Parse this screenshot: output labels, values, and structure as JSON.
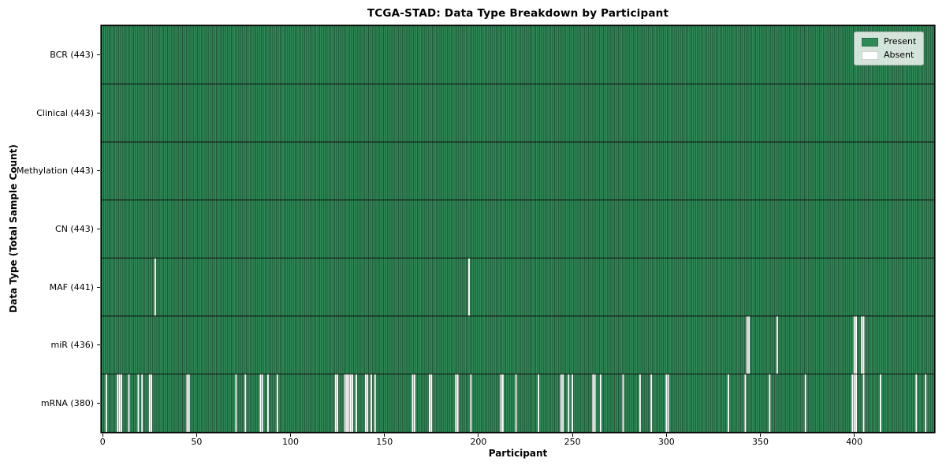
{
  "chart_data": {
    "type": "heatmap",
    "title": "TCGA-STAD: Data Type Breakdown by Participant",
    "xlabel": "Participant",
    "ylabel": "Data Type (Total Sample Count)",
    "n_participants": 443,
    "x_ticks": [
      0,
      50,
      100,
      150,
      200,
      250,
      300,
      350,
      400
    ],
    "xlim": [
      0,
      443
    ],
    "grid": false,
    "legend_position": "upper right",
    "colors": {
      "present": "#2e8b57",
      "absent": "#ffffff",
      "bar_edge": "rgba(0,0,0,0.55)",
      "row_separator": "#111111"
    },
    "legend": [
      {
        "label": "Present",
        "color": "#2e8b57"
      },
      {
        "label": "Absent",
        "color": "#ffffff"
      }
    ],
    "rows": [
      {
        "label": "BCR (443)",
        "data_type": "BCR",
        "present_count": 443,
        "absent_participants": []
      },
      {
        "label": "Clinical (443)",
        "data_type": "Clinical",
        "present_count": 443,
        "absent_participants": []
      },
      {
        "label": "Methylation (443)",
        "data_type": "Methylation",
        "present_count": 443,
        "absent_participants": []
      },
      {
        "label": "CN (443)",
        "data_type": "CN",
        "present_count": 443,
        "absent_participants": []
      },
      {
        "label": "MAF (441)",
        "data_type": "MAF",
        "present_count": 441,
        "absent_participants": [
          28,
          195
        ]
      },
      {
        "label": "miR (436)",
        "data_type": "miR",
        "present_count": 436,
        "absent_participants": [
          343,
          344,
          359,
          400,
          401,
          404,
          405
        ]
      },
      {
        "label": "mRNA (380)",
        "data_type": "mRNA",
        "present_count": 380,
        "absent_participants": [
          2,
          8,
          9,
          10,
          14,
          19,
          21,
          25,
          26,
          45,
          46,
          71,
          76,
          84,
          85,
          88,
          93,
          124,
          125,
          129,
          130,
          131,
          132,
          133,
          135,
          140,
          141,
          143,
          145,
          165,
          166,
          174,
          175,
          188,
          189,
          196,
          212,
          213,
          220,
          232,
          244,
          245,
          248,
          250,
          261,
          262,
          265,
          277,
          286,
          292,
          300,
          301,
          333,
          342,
          355,
          374,
          399,
          400,
          401,
          405,
          414,
          433,
          438
        ]
      }
    ]
  }
}
